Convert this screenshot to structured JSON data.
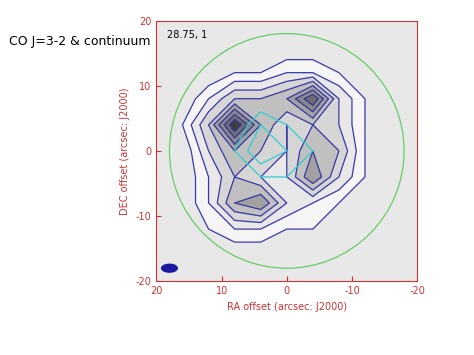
{
  "chart_data": {
    "type": "contour",
    "caption": "CO J=3-2 & continuum",
    "annotation": "28.75, 1",
    "xlabel": "RA offset (arcsec: J2000)",
    "ylabel": "DEC offset (arcsec: J2000)",
    "xlim": [
      20,
      -20
    ],
    "ylim": [
      -20,
      20
    ],
    "xticks": [
      20,
      10,
      0,
      -10,
      -20
    ],
    "yticks": [
      -20,
      -10,
      0,
      10,
      20
    ],
    "x": [
      -20,
      -16,
      -12,
      -8,
      -4,
      0,
      4,
      8,
      12,
      16,
      20
    ],
    "y": [
      -20,
      -16,
      -12,
      -8,
      -4,
      0,
      4,
      8,
      12,
      16,
      20
    ],
    "series": [
      {
        "name": "CO J=3-2",
        "color": "#3a3aa8",
        "levels": [
          1,
          2,
          3,
          4,
          5,
          6,
          7,
          8
        ],
        "cells": [
          [
            0,
            0,
            0,
            0,
            0,
            0,
            0,
            0,
            0,
            0,
            0
          ],
          [
            0,
            0,
            0,
            0,
            0,
            0,
            0,
            0,
            0,
            0,
            0
          ],
          [
            0,
            0,
            0,
            0,
            1,
            1,
            2,
            2,
            1,
            0,
            0
          ],
          [
            0,
            0,
            0,
            1,
            2,
            3,
            6,
            5,
            2,
            0,
            0
          ],
          [
            0,
            0,
            1,
            3,
            6,
            3,
            3,
            4,
            2,
            0,
            0
          ],
          [
            0,
            0,
            1,
            4,
            5,
            3,
            4,
            5,
            3,
            0,
            0
          ],
          [
            0,
            0,
            1,
            3,
            4,
            3,
            5,
            9,
            4,
            1,
            0
          ],
          [
            0,
            0,
            1,
            3,
            8,
            5,
            4,
            4,
            2,
            0,
            0
          ],
          [
            0,
            0,
            0,
            1,
            2,
            2,
            1,
            1,
            0,
            0,
            0
          ],
          [
            0,
            0,
            0,
            0,
            0,
            0,
            0,
            0,
            0,
            0,
            0
          ],
          [
            0,
            0,
            0,
            0,
            0,
            0,
            0,
            0,
            0,
            0,
            0
          ]
        ]
      },
      {
        "name": "continuum",
        "color": "#33cccc",
        "levels": [
          1,
          2
        ],
        "cells": [
          [
            0,
            0,
            0,
            0,
            0,
            0,
            0,
            0,
            0,
            0,
            0
          ],
          [
            0,
            0,
            0,
            0,
            0,
            0,
            0,
            0,
            0,
            0,
            0
          ],
          [
            0,
            0,
            0,
            0,
            0,
            0,
            0,
            0,
            0,
            0,
            0
          ],
          [
            0,
            0,
            0,
            0,
            0,
            0,
            0,
            0,
            0,
            0,
            0
          ],
          [
            0,
            0,
            0,
            0,
            0,
            1,
            1,
            0,
            0,
            0,
            0
          ],
          [
            0,
            0,
            0,
            0,
            1,
            2,
            3,
            1,
            0,
            0,
            0
          ],
          [
            0,
            0,
            0,
            0,
            0,
            1,
            2,
            0,
            0,
            0,
            0
          ],
          [
            0,
            0,
            0,
            0,
            0,
            0,
            0,
            0,
            0,
            0,
            0
          ],
          [
            0,
            0,
            0,
            0,
            0,
            0,
            0,
            0,
            0,
            0,
            0
          ],
          [
            0,
            0,
            0,
            0,
            0,
            0,
            0,
            0,
            0,
            0,
            0
          ],
          [
            0,
            0,
            0,
            0,
            0,
            0,
            0,
            0,
            0,
            0,
            0
          ]
        ]
      }
    ],
    "primary_beam": {
      "x": 0,
      "y": 0,
      "radius": 18,
      "color": "#66cc66"
    },
    "beam": {
      "x": 18,
      "y": -18,
      "width": 2.4,
      "height": 1.2,
      "color": "#1a1aa0"
    }
  }
}
